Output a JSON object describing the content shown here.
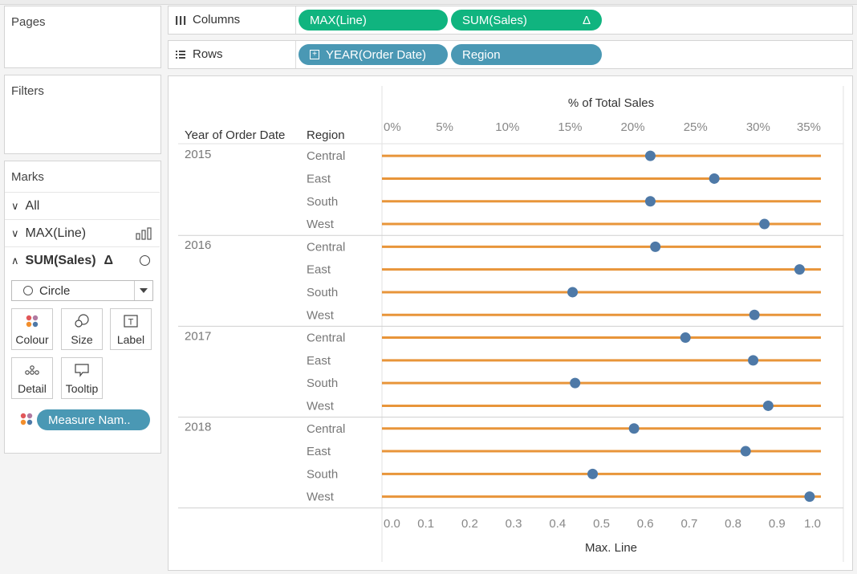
{
  "left_panel": {
    "pages_title": "Pages",
    "filters_title": "Filters",
    "marks": {
      "title": "Marks",
      "all_label": "All",
      "line_label": "MAX(Line)",
      "sales_label": "SUM(Sales)",
      "delta": "Δ",
      "mark_type": "Circle",
      "cards": {
        "colour": "Colour",
        "size": "Size",
        "label": "Label",
        "detail": "Detail",
        "tooltip": "Tooltip"
      },
      "measure_pill": "Measure Nam.."
    }
  },
  "shelves": {
    "columns_label": "Columns",
    "rows_label": "Rows",
    "columns_pills": [
      "MAX(Line)",
      "SUM(Sales)"
    ],
    "delta": "Δ",
    "rows_pills": [
      "YEAR(Order Date)",
      "Region"
    ]
  },
  "colors": {
    "line": "#e8953a",
    "dot": "#4e79a7",
    "green_pill": "#10b47f",
    "blue_pill": "#4a98b4"
  },
  "chart_data": {
    "type": "dot-plot",
    "row_header_1": "Year of Order Date",
    "row_header_2": "Region",
    "top_axis_title": "% of Total Sales",
    "top_axis_ticks": [
      "0%",
      "5%",
      "10%",
      "15%",
      "20%",
      "25%",
      "30%",
      "35%"
    ],
    "top_axis_range": [
      0,
      35
    ],
    "bottom_axis_title": "Max. Line",
    "bottom_axis_ticks": [
      "0.0",
      "0.1",
      "0.2",
      "0.3",
      "0.4",
      "0.5",
      "0.6",
      "0.7",
      "0.8",
      "0.9",
      "1.0"
    ],
    "bottom_axis_range": [
      0,
      1
    ],
    "line_value": 1.0,
    "groups": [
      {
        "year": "2015",
        "rows": [
          {
            "region": "Central",
            "pct": 21.4
          },
          {
            "region": "East",
            "pct": 26.5
          },
          {
            "region": "South",
            "pct": 21.4
          },
          {
            "region": "West",
            "pct": 30.5
          }
        ]
      },
      {
        "year": "2016",
        "rows": [
          {
            "region": "Central",
            "pct": 21.8
          },
          {
            "region": "East",
            "pct": 33.3
          },
          {
            "region": "South",
            "pct": 15.2
          },
          {
            "region": "West",
            "pct": 29.7
          }
        ]
      },
      {
        "year": "2017",
        "rows": [
          {
            "region": "Central",
            "pct": 24.2
          },
          {
            "region": "East",
            "pct": 29.6
          },
          {
            "region": "South",
            "pct": 15.4
          },
          {
            "region": "West",
            "pct": 30.8
          }
        ]
      },
      {
        "year": "2018",
        "rows": [
          {
            "region": "Central",
            "pct": 20.1
          },
          {
            "region": "East",
            "pct": 29.0
          },
          {
            "region": "South",
            "pct": 16.8
          },
          {
            "region": "West",
            "pct": 34.1
          }
        ]
      }
    ]
  }
}
